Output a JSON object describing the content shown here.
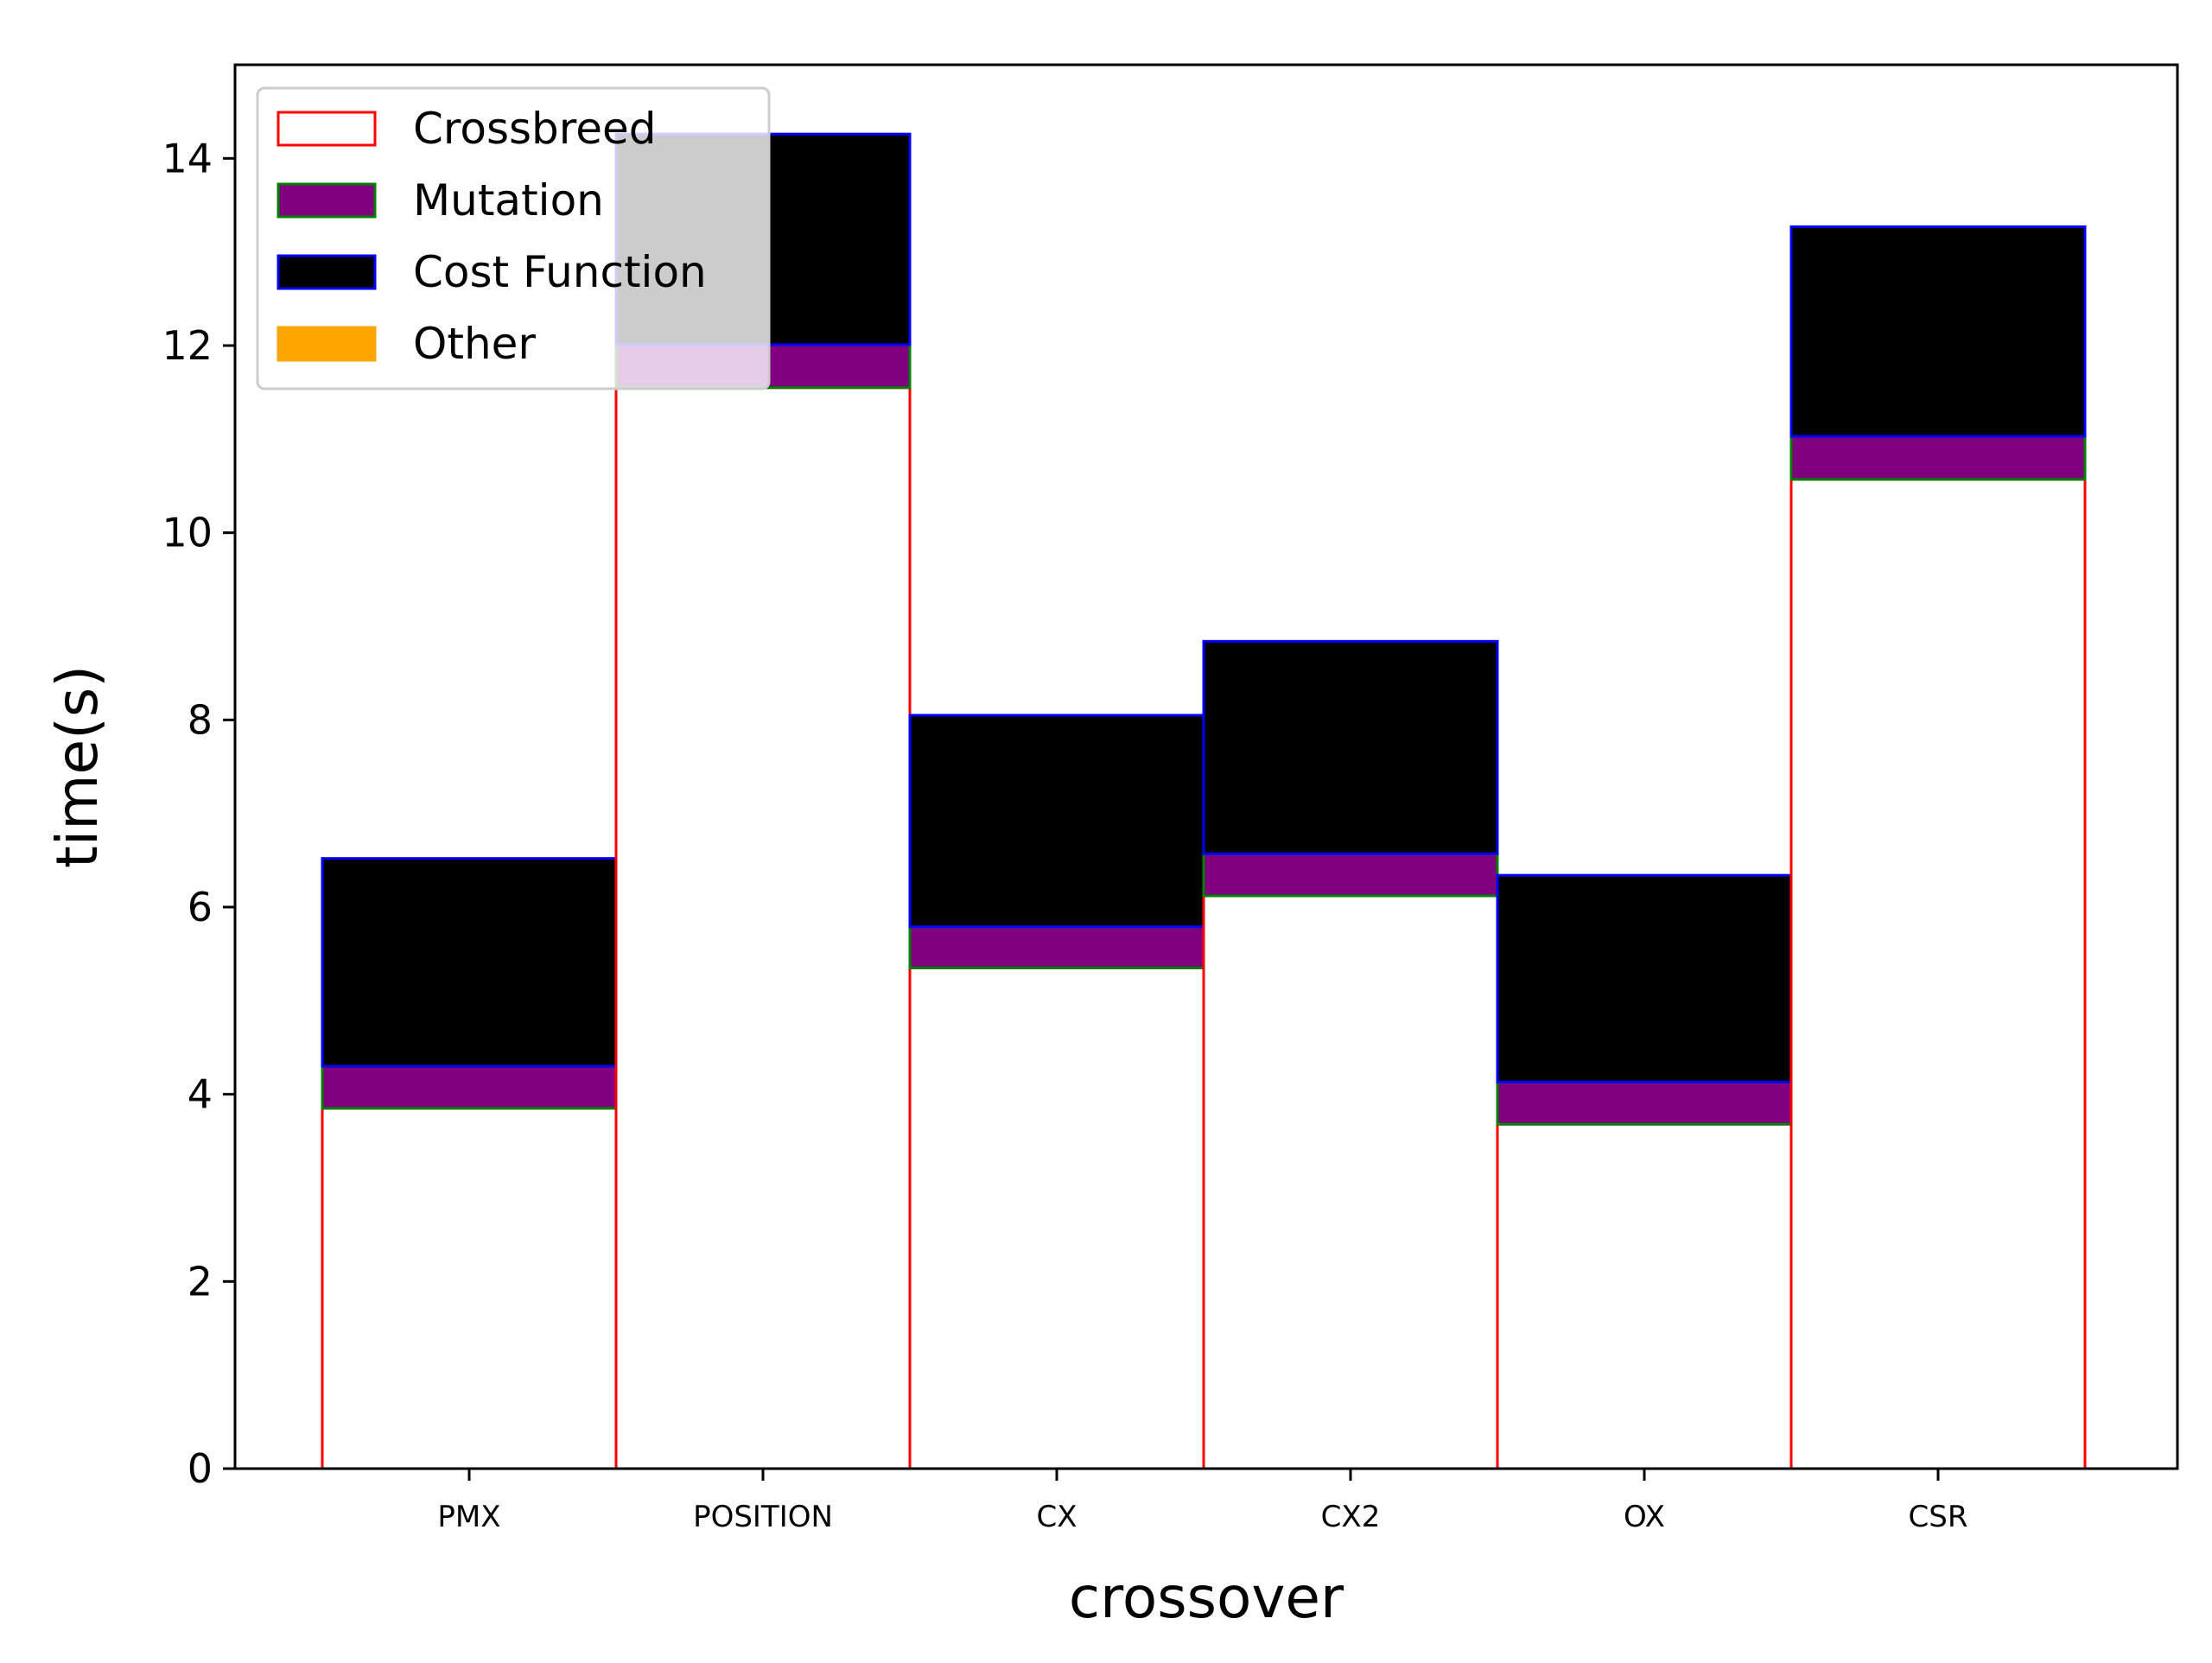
{
  "chart_data": {
    "type": "bar",
    "stacked": true,
    "categories": [
      "PMX",
      "POSITION",
      "CX",
      "CX2",
      "OX",
      "CSR"
    ],
    "series": [
      {
        "name": "Crossbreed",
        "values": [
          3.85,
          11.55,
          5.35,
          6.12,
          3.68,
          10.57
        ],
        "fill": "#ffffff",
        "edge": "#ff0000"
      },
      {
        "name": "Mutation",
        "values": [
          0.45,
          0.46,
          0.44,
          0.45,
          0.45,
          0.46
        ],
        "fill": "#800080",
        "edge": "#008000"
      },
      {
        "name": "Cost Function",
        "values": [
          2.22,
          2.25,
          2.26,
          2.27,
          2.21,
          2.24
        ],
        "fill": "#000000",
        "edge": "#0000ff"
      },
      {
        "name": "Other",
        "values": [
          0,
          0,
          0,
          0,
          0,
          0
        ],
        "fill": "#ffa500",
        "edge": "#ffa500"
      }
    ],
    "xlabel": "crossover",
    "ylabel": "time(s)",
    "ylim": [
      0,
      15
    ],
    "yticks": [
      0,
      2,
      4,
      6,
      8,
      10,
      12,
      14
    ],
    "grid": false,
    "legend": {
      "position": "top-left",
      "entries": [
        "Crossbreed",
        "Mutation",
        "Cost Function",
        "Other"
      ]
    }
  }
}
